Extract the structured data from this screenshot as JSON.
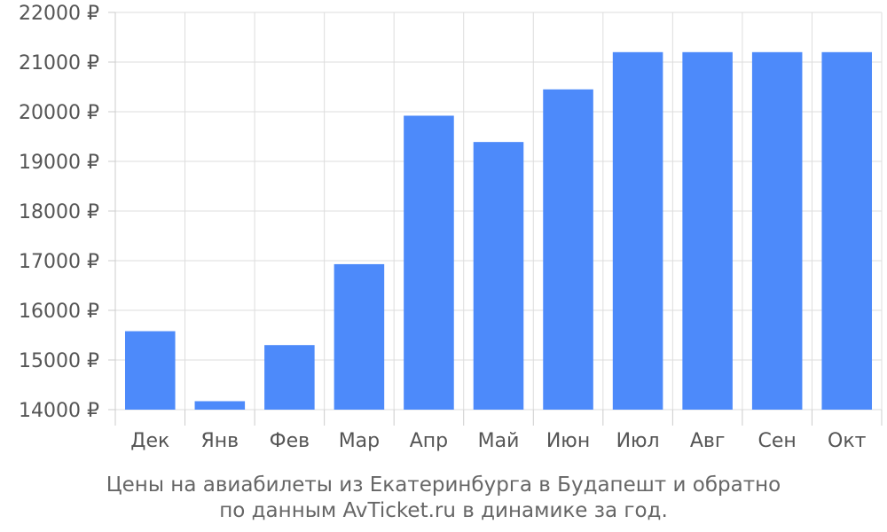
{
  "chart_data": {
    "type": "bar",
    "categories": [
      "Дек",
      "Янв",
      "Фев",
      "Мар",
      "Апр",
      "Май",
      "Июн",
      "Июл",
      "Авг",
      "Сен",
      "Окт"
    ],
    "values": [
      15580,
      14170,
      15300,
      16930,
      19920,
      19390,
      20450,
      21200,
      21200,
      21200,
      21200
    ],
    "ylim": [
      14000,
      22000
    ],
    "yticks": [
      14000,
      15000,
      16000,
      17000,
      18000,
      19000,
      20000,
      21000,
      22000
    ],
    "ytick_suffix": " ₽",
    "grid": true,
    "bar_color": "#4d8afa"
  },
  "caption": {
    "line1": "Цены на авиабилеты из Екатеринбурга в Будапешт и обратно",
    "line2": "по данным AvTicket.ru в динамике за год."
  }
}
